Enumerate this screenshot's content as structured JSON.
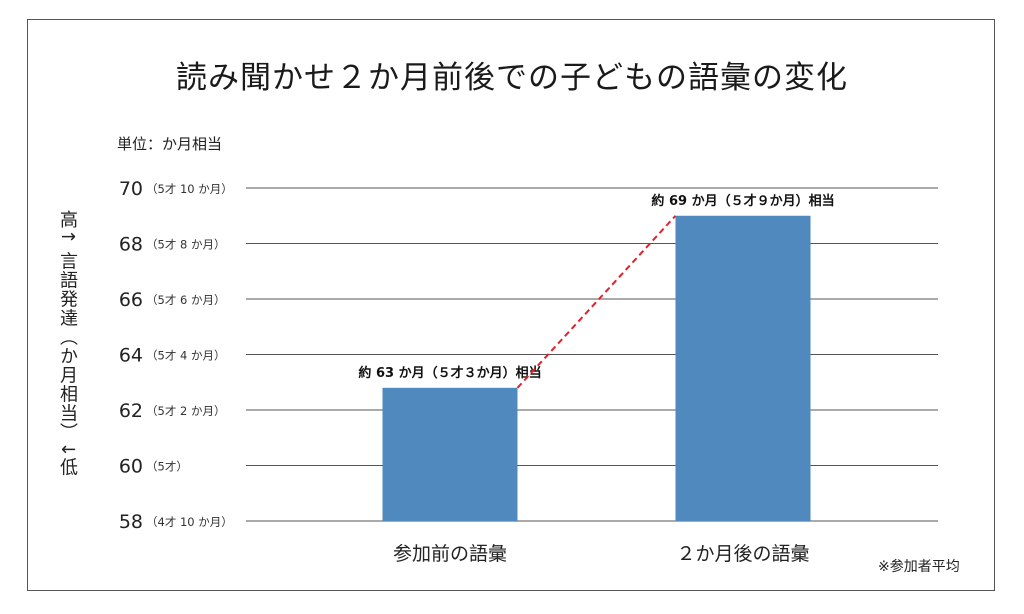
{
  "chart_data": {
    "type": "bar",
    "title": "読み聞かせ２か月前後での子どもの語彙の変化",
    "unit_label": "単位：か月相当",
    "ylabel": "高↑ 言語発達（か月相当）↓低",
    "footnote": "※参加者平均",
    "ylim": [
      58,
      70
    ],
    "grid": true,
    "yticks": [
      {
        "value": 70,
        "label": "70",
        "sub": "（5才 10 か月）"
      },
      {
        "value": 68,
        "label": "68",
        "sub": "（5才 8 か月）"
      },
      {
        "value": 66,
        "label": "66",
        "sub": "（5才 6 か月）"
      },
      {
        "value": 64,
        "label": "64",
        "sub": "（5才 4 か月）"
      },
      {
        "value": 62,
        "label": "62",
        "sub": "（5才 2 か月）"
      },
      {
        "value": 60,
        "label": "60",
        "sub": "（5才）"
      },
      {
        "value": 58,
        "label": "58",
        "sub": "（4才 10 か月）"
      }
    ],
    "categories": [
      "参加前の語彙",
      "２か月後の語彙"
    ],
    "values": [
      62.8,
      69
    ],
    "data_labels": [
      "約 63 か月（５才３か月）相当",
      "約 69 か月（５才９か月）相当"
    ],
    "bar_color": "#4f89bd",
    "connector_color": "#e0202a"
  }
}
